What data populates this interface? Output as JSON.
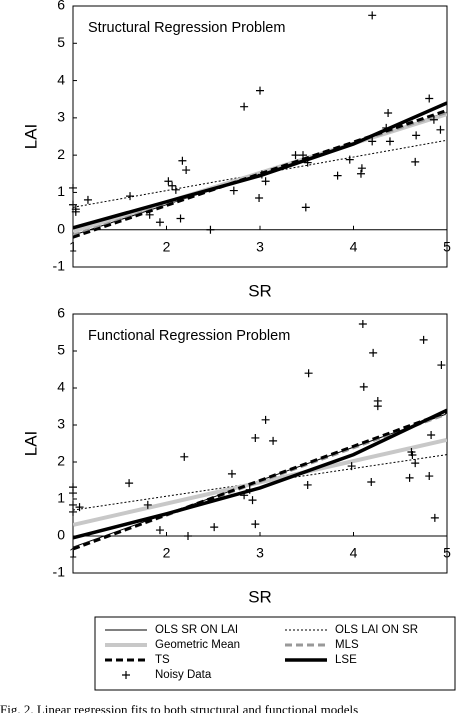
{
  "chart_data": [
    {
      "type": "line",
      "title": "Structural Regression Problem",
      "x_label": "SR",
      "y_label": "LAI",
      "xlim": [
        1,
        5
      ],
      "ylim": [
        -1,
        6
      ],
      "xticks": [
        1,
        2,
        3,
        4,
        5
      ],
      "yticks": [
        -1,
        0,
        1,
        2,
        3,
        4,
        5,
        6
      ],
      "series": [
        {
          "color": "#000000",
          "width": 1,
          "dash": "none",
          "x": [
            1,
            5
          ],
          "values": [
            -0.15,
            3.15
          ]
        },
        {
          "color": "#000000",
          "width": 1,
          "dash": "2,2",
          "x": [
            1,
            5
          ],
          "values": [
            0.6,
            2.4
          ]
        },
        {
          "color": "#c8c8c8",
          "width": 4,
          "dash": "none",
          "x": [
            1,
            5
          ],
          "values": [
            -0.05,
            3.1
          ]
        },
        {
          "color": "#999999",
          "width": 3,
          "dash": "7,4",
          "x": [
            1,
            5
          ],
          "values": [
            -0.15,
            3.15
          ]
        },
        {
          "color": "#000000",
          "width": 3,
          "dash": "7,4",
          "x": [
            1,
            5
          ],
          "values": [
            -0.2,
            3.2
          ]
        },
        {
          "color": "#000000",
          "width": 3.5,
          "dash": "none",
          "x": [
            1,
            2,
            3,
            4,
            5
          ],
          "values": [
            0.05,
            0.75,
            1.45,
            2.3,
            3.4
          ]
        },
        {
          "color": "#000000",
          "marker": "+",
          "x": [
            1,
            1,
            1.03,
            1.03,
            1.16,
            1.61,
            1.82,
            1.93,
            2.02,
            2.06,
            2.1,
            2.17,
            2.21,
            2.15,
            2.47,
            2.72,
            2.83,
            3.0,
            2.99,
            3.02,
            3.06,
            3.38,
            3.46,
            3.49,
            3.51,
            3.83,
            3.96,
            4.09,
            4.2,
            4.08,
            4.2,
            4.37,
            4.35,
            4.39,
            4.67,
            4.81,
            4.86,
            4.93,
            4.66
          ],
          "values": [
            1.12,
            0.67,
            0.48,
            0.55,
            0.8,
            0.9,
            0.4,
            0.2,
            1.3,
            1.18,
            1.07,
            1.85,
            1.6,
            0.3,
            0,
            1.05,
            3.3,
            3.73,
            0.85,
            1.48,
            1.3,
            2.0,
            2.0,
            0.6,
            1.8,
            1.45,
            1.88,
            1.65,
            2.37,
            1.5,
            5.75,
            3.13,
            2.73,
            2.37,
            2.53,
            3.52,
            2.95,
            2.68,
            1.82
          ]
        }
      ]
    },
    {
      "type": "line",
      "title": "Functional Regression Problem",
      "x_label": "SR",
      "y_label": "LAI",
      "xlim": [
        1,
        5
      ],
      "ylim": [
        -1,
        6
      ],
      "xticks": [
        1,
        2,
        3,
        4,
        5
      ],
      "yticks": [
        -1,
        0,
        1,
        2,
        3,
        4,
        5,
        6
      ],
      "legend": "below",
      "series": [
        {
          "name": "OLS SR ON LAI",
          "color": "#000000",
          "width": 1,
          "dash": "none",
          "x": [
            1,
            5
          ],
          "values": [
            -0.3,
            3.3
          ]
        },
        {
          "name": "OLS LAI ON SR",
          "color": "#000000",
          "width": 1,
          "dash": "2,2",
          "x": [
            1,
            5
          ],
          "values": [
            0.7,
            2.2
          ]
        },
        {
          "name": "Geometric Mean",
          "color": "#c8c8c8",
          "width": 4,
          "dash": "none",
          "x": [
            1,
            5
          ],
          "values": [
            0.3,
            2.6
          ]
        },
        {
          "name": "MLS",
          "color": "#999999",
          "width": 3,
          "dash": "7,4",
          "x": [
            1,
            5
          ],
          "values": [
            -0.35,
            3.3
          ]
        },
        {
          "name": "TS",
          "color": "#000000",
          "width": 3,
          "dash": "7,4",
          "x": [
            1,
            5
          ],
          "values": [
            -0.35,
            3.35
          ]
        },
        {
          "name": "LSE",
          "color": "#000000",
          "width": 3.5,
          "dash": "none",
          "x": [
            1,
            2,
            3,
            4,
            5
          ],
          "values": [
            -0.05,
            0.6,
            1.3,
            2.2,
            3.4
          ]
        },
        {
          "name": "Noisy Data",
          "color": "#000000",
          "marker": "+",
          "x": [
            1,
            1,
            1,
            1,
            1.07,
            1.6,
            1.8,
            1.93,
            2.19,
            2.23,
            2.51,
            2.7,
            2.83,
            2.89,
            2.92,
            2.95,
            2.95,
            3.06,
            3.14,
            3.52,
            3.51,
            4.1,
            4.11,
            4.21,
            4.26,
            4.26,
            4.19,
            4.75,
            4.6,
            4.62,
            4.63,
            4.66,
            4.81,
            4.83,
            4.87,
            4.94,
            3.98
          ],
          "values": [
            1.32,
            1.16,
            0.84,
            0.65,
            0.78,
            1.43,
            0.84,
            0.16,
            2.14,
            0,
            0.24,
            1.68,
            1.1,
            1.25,
            0.97,
            2.65,
            0.32,
            3.14,
            2.57,
            4.4,
            1.38,
            5.73,
            4.03,
            4.95,
            3.51,
            3.65,
            1.46,
            5.3,
            1.57,
            2.27,
            2.19,
            1.97,
            1.62,
            2.73,
            0.49,
            4.62,
            1.89
          ]
        }
      ]
    }
  ],
  "caption": "Fig. 2. Linear regression fits to both structural and functional models"
}
